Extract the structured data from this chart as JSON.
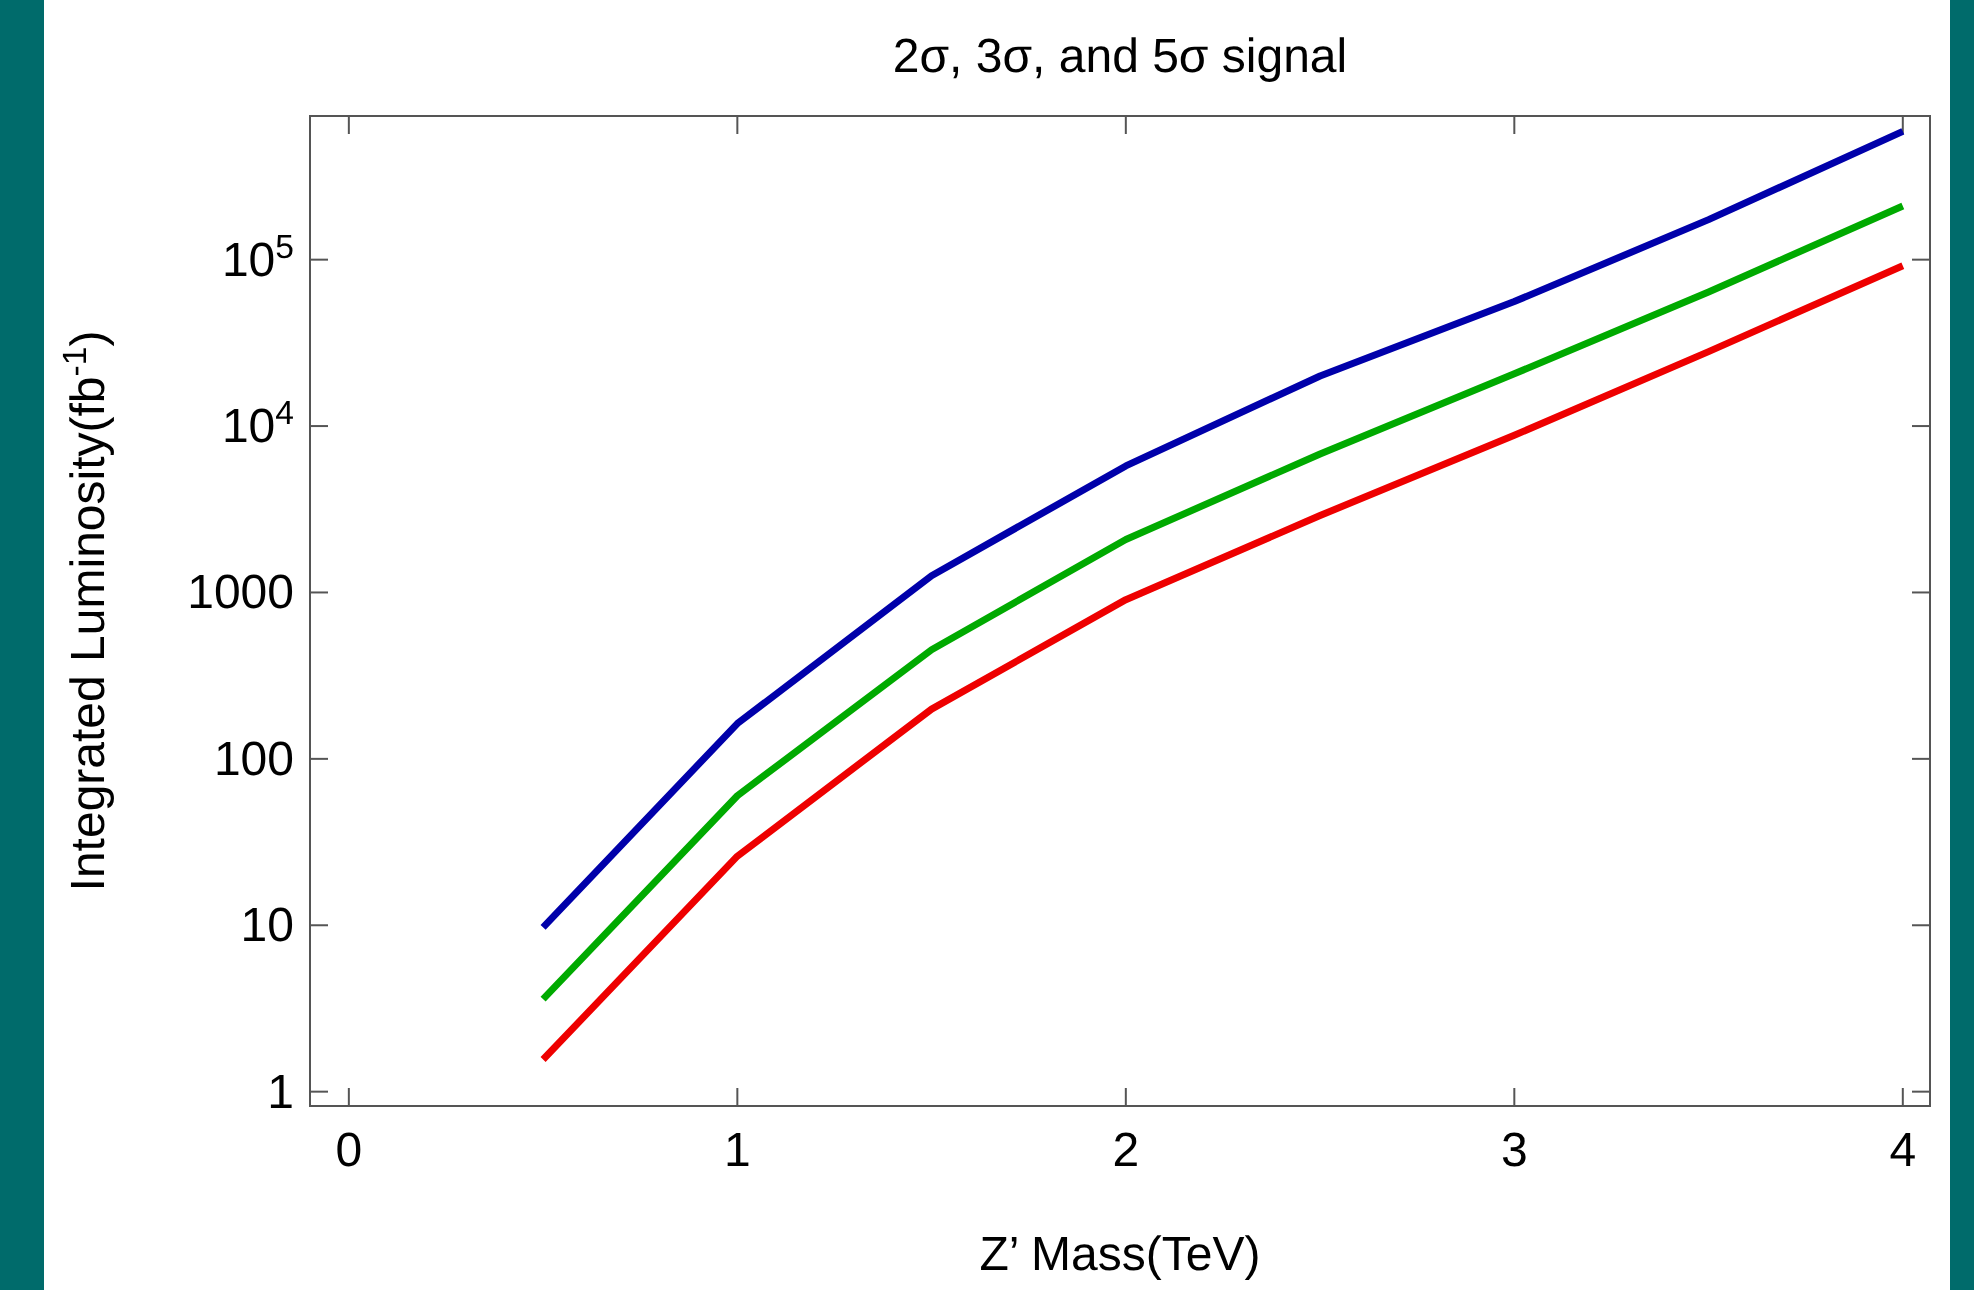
{
  "chart_data": {
    "type": "line",
    "title": "2σ, 3σ, and 5σ signal",
    "xlabel": "Z’ Mass(TeV)",
    "ylabel": "Integrated Luminosity(fb$^{-1}$)",
    "log": "y",
    "x": [
      0.5,
      1,
      1.5,
      2,
      2.5,
      3,
      3.5,
      4
    ],
    "series": [
      {
        "color": "#0000aa",
        "values": [
          9.7,
          163,
          1260,
          5760,
          20000,
          56000,
          174000,
          590000
        ]
      },
      {
        "color": "#00aa00",
        "values": [
          3.6,
          60,
          453,
          2080,
          6800,
          20600,
          64000,
          210000
        ]
      },
      {
        "color": "#ee0000",
        "values": [
          1.56,
          26,
          199,
          905,
          2900,
          8800,
          28000,
          92000
        ]
      }
    ],
    "xlim": [
      -0.1,
      4.07
    ],
    "xticks": [
      0,
      1,
      2,
      3,
      4
    ],
    "ylim": [
      0.82,
      730000
    ],
    "yticks": [
      1,
      10,
      100,
      1000,
      {
        "value": 10000,
        "label": "10$^{4}$"
      },
      {
        "value": 100000,
        "label": "10$^{5}$"
      }
    ],
    "grid": false,
    "marker": "none",
    "line_style": "solid"
  }
}
